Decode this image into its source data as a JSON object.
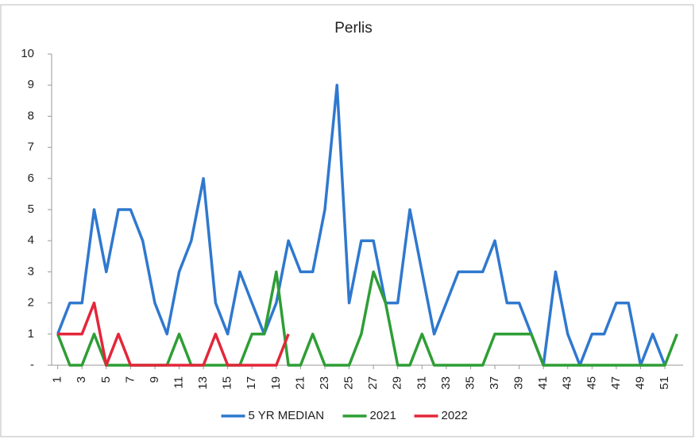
{
  "chart_data": {
    "type": "line",
    "title": "Perlis",
    "x": [
      1,
      2,
      3,
      4,
      5,
      6,
      7,
      8,
      9,
      10,
      11,
      12,
      13,
      14,
      15,
      16,
      17,
      18,
      19,
      20,
      21,
      22,
      23,
      24,
      25,
      26,
      27,
      28,
      29,
      30,
      31,
      32,
      33,
      34,
      35,
      36,
      37,
      38,
      39,
      40,
      41,
      42,
      43,
      44,
      45,
      46,
      47,
      48,
      49,
      50,
      51,
      52
    ],
    "xlim": [
      0.5,
      52.5
    ],
    "xticks": [
      1,
      3,
      5,
      7,
      9,
      11,
      13,
      15,
      17,
      19,
      21,
      23,
      25,
      27,
      29,
      31,
      33,
      35,
      37,
      39,
      41,
      43,
      45,
      47,
      49,
      51
    ],
    "ylim": [
      0,
      10
    ],
    "yticks": [
      {
        "value": 0,
        "label": "-"
      },
      1,
      2,
      3,
      4,
      5,
      6,
      7,
      8,
      9,
      10
    ],
    "grid": false,
    "legend": "bottom",
    "series": [
      {
        "name": "5 YR MEDIAN",
        "color": "#2f78cf",
        "values": [
          1,
          2,
          2,
          5,
          3,
          5,
          5,
          4,
          2,
          1,
          3,
          4,
          6,
          2,
          1,
          3,
          2,
          1,
          2,
          4,
          3,
          3,
          5,
          9,
          2,
          4,
          4,
          2,
          2,
          5,
          3,
          1,
          2,
          3,
          3,
          3,
          4,
          2,
          2,
          1,
          0,
          3,
          1,
          0,
          1,
          1,
          2,
          2,
          0,
          1,
          0,
          null
        ]
      },
      {
        "name": "2021",
        "color": "#2e9e35",
        "values": [
          1,
          0,
          0,
          1,
          0,
          0,
          0,
          0,
          0,
          0,
          1,
          0,
          0,
          0,
          0,
          0,
          1,
          1,
          3,
          0,
          0,
          1,
          0,
          0,
          0,
          1,
          3,
          2,
          0,
          0,
          1,
          0,
          0,
          0,
          0,
          0,
          1,
          1,
          1,
          1,
          0,
          0,
          0,
          0,
          0,
          0,
          0,
          0,
          0,
          0,
          0,
          1
        ]
      },
      {
        "name": "2022",
        "color": "#e3263a",
        "values": [
          1,
          1,
          1,
          2,
          0,
          1,
          0,
          0,
          0,
          0,
          0,
          0,
          0,
          1,
          0,
          0,
          0,
          0,
          0,
          1,
          null,
          null,
          null,
          null,
          null,
          null,
          null,
          null,
          null,
          null,
          null,
          null,
          null,
          null,
          null,
          null,
          null,
          null,
          null,
          null,
          null,
          null,
          null,
          null,
          null,
          null,
          null,
          null,
          null,
          null,
          null,
          null
        ]
      }
    ]
  }
}
